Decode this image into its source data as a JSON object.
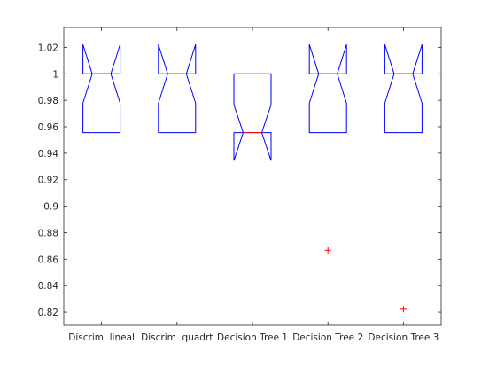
{
  "chart_data": {
    "type": "boxplot",
    "title": "",
    "xlabel": "",
    "ylabel": "",
    "ylim": [
      0.81,
      1.035
    ],
    "yticks": [
      0.82,
      0.84,
      0.86,
      0.88,
      0.9,
      0.92,
      0.94,
      0.96,
      0.98,
      1,
      1.02
    ],
    "ytick_labels": [
      "0.82",
      "0.84",
      "0.86",
      "0.88",
      "0.9",
      "0.92",
      "0.94",
      "0.96",
      "0.98",
      "1",
      "1.02"
    ],
    "grid": false,
    "notched": true,
    "categories": [
      "Discrim lineal",
      "Discrim quadrt",
      "Decision Tree 1",
      "Decision Tree 2",
      "Decision Tree 3"
    ],
    "tick_labels": [
      "Discrim  lineal",
      "Discrim  quadrt",
      "Decision Tree 1",
      "Decision Tree 2",
      "Decision Tree 3"
    ],
    "boxes": [
      {
        "q1": 0.9556,
        "median": 1.0,
        "q3": 1.0,
        "notch_low": 0.9778,
        "notch_high": 1.0222,
        "outliers": []
      },
      {
        "q1": 0.9556,
        "median": 1.0,
        "q3": 1.0,
        "notch_low": 0.9778,
        "notch_high": 1.0222,
        "outliers": []
      },
      {
        "q1": 0.9556,
        "median": 0.9556,
        "q3": 1.0,
        "notch_low": 0.9344,
        "notch_high": 0.9767,
        "outliers": []
      },
      {
        "q1": 0.9556,
        "median": 1.0,
        "q3": 1.0,
        "notch_low": 0.9778,
        "notch_high": 1.0222,
        "outliers": [
          0.8667
        ]
      },
      {
        "q1": 0.9556,
        "median": 1.0,
        "q3": 1.0,
        "notch_low": 0.9778,
        "notch_high": 1.0222,
        "outliers": [
          0.8222
        ]
      }
    ],
    "colors": {
      "box": "#0000ff",
      "median": "#ff0000",
      "outlier": "#ff0000",
      "axis": "#262626"
    }
  }
}
